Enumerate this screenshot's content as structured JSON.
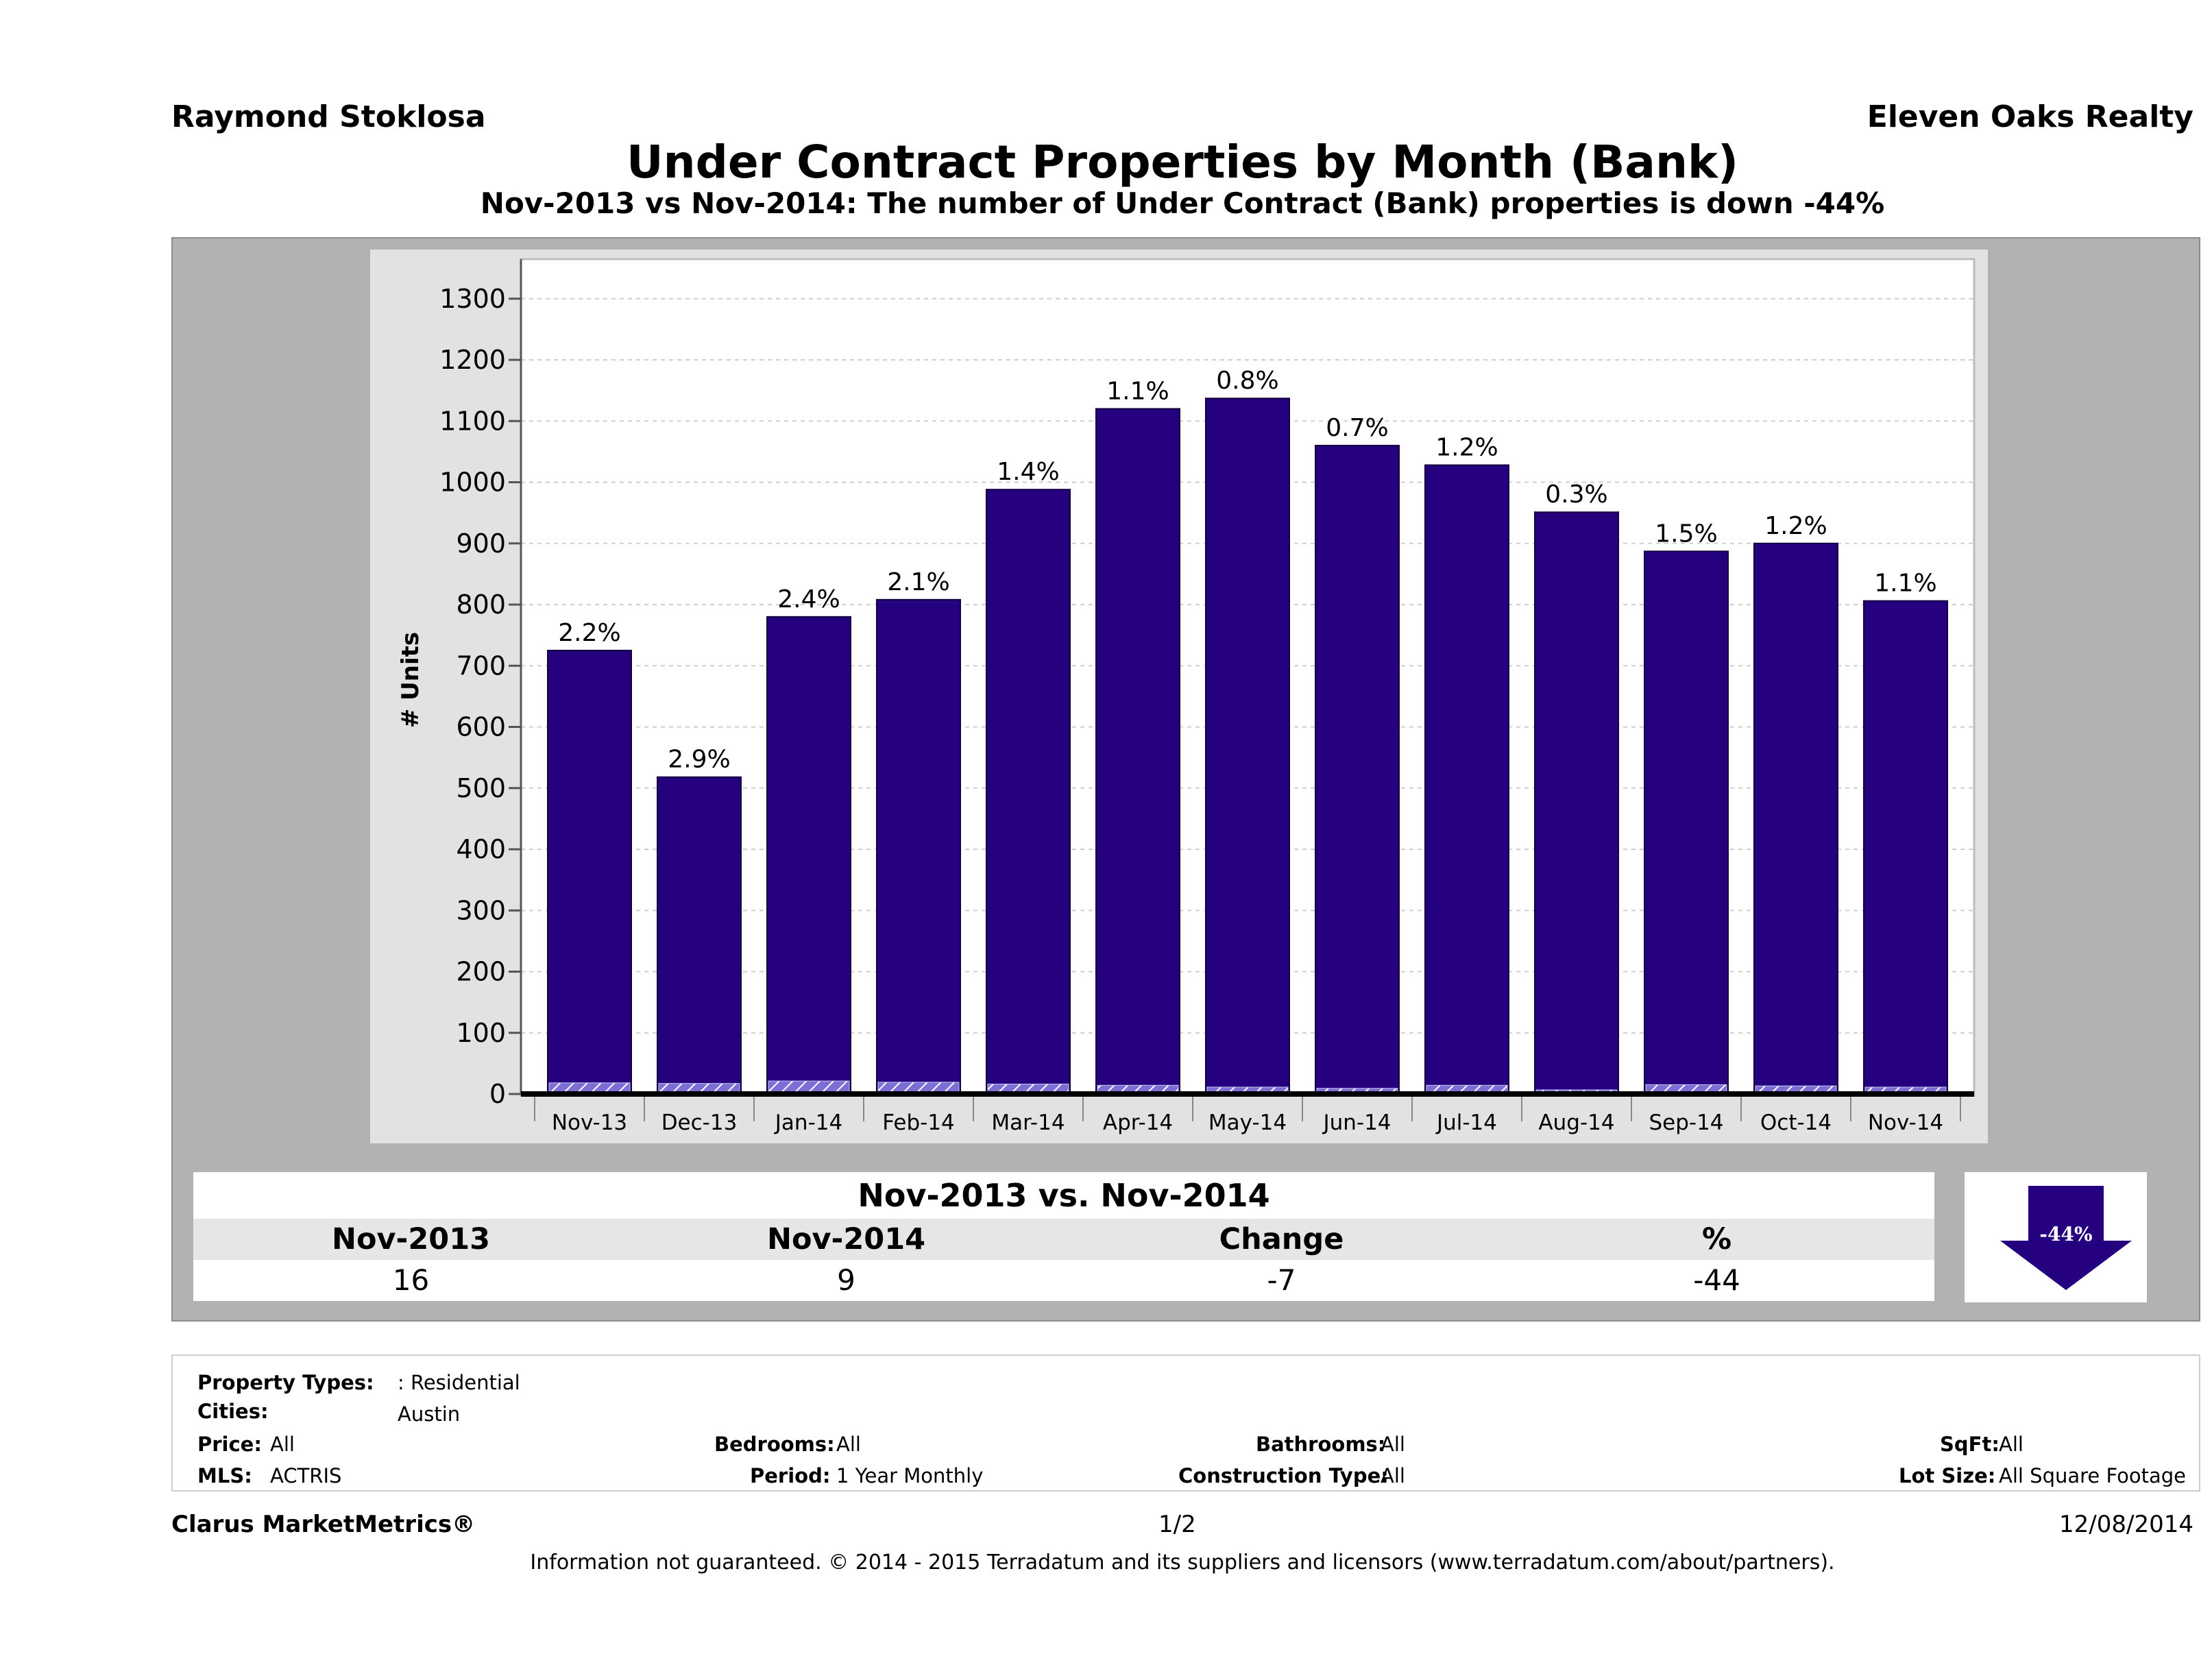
{
  "header": {
    "agent": "Raymond Stoklosa",
    "company": "Eleven Oaks Realty",
    "title": "Under Contract Properties by Month (Bank)",
    "subtitle": "Nov-2013 vs Nov-2014: The number of Under Contract (Bank)  properties is down -44%"
  },
  "chart_data": {
    "type": "bar",
    "ylabel": "# Units",
    "ylim": [
      0,
      1350
    ],
    "yticks": [
      "0",
      "100",
      "200",
      "300",
      "400",
      "500",
      "600",
      "700",
      "800",
      "900",
      "1000",
      "1100",
      "1200",
      "1300"
    ],
    "categories": [
      "Nov-13",
      "Dec-13",
      "Jan-14",
      "Feb-14",
      "Mar-14",
      "Apr-14",
      "May-14",
      "Jun-14",
      "Jul-14",
      "Aug-14",
      "Sep-14",
      "Oct-14",
      "Nov-14"
    ],
    "series": [
      {
        "values": [
          725,
          518,
          780,
          808,
          988,
          1120,
          1137,
          1060,
          1028,
          951,
          887,
          900,
          806
        ]
      },
      {
        "values": [
          16,
          15,
          19,
          17,
          14,
          12,
          9,
          7,
          12,
          3,
          13,
          11,
          9
        ]
      }
    ],
    "data_labels": [
      "2.2%",
      "2.9%",
      "2.4%",
      "2.1%",
      "1.4%",
      "1.1%",
      "0.8%",
      "0.7%",
      "1.2%",
      "0.3%",
      "1.5%",
      "1.2%",
      "1.1%"
    ],
    "grid": true,
    "colors": {
      "bar": "#25007f",
      "bank": "#7b6fd6",
      "frame": "#b2b2b2"
    }
  },
  "comparison": {
    "heading": "Nov-2013 vs. Nov-2014",
    "columns": [
      "Nov-2013",
      "Nov-2014",
      "Change",
      "%"
    ],
    "values": [
      "16",
      "9",
      "-7",
      "-44"
    ],
    "arrow_label": "-44%",
    "arrow_color": "#25007f"
  },
  "filters": {
    "property_types_label": "Property Types:",
    "property_types_value": ": Residential",
    "cities_label": "Cities:",
    "cities_value": "Austin",
    "price_label": "Price:",
    "price_value": "All",
    "mls_label": "MLS:",
    "mls_value": "ACTRIS",
    "bedrooms_label": "Bedrooms:",
    "bedrooms_value": "All",
    "period_label": "Period:",
    "period_value": "1 Year Monthly",
    "bathrooms_label": "Bathrooms:",
    "bathrooms_value": "All",
    "construction_label": "Construction Type:",
    "construction_value": "All",
    "sqft_label": "SqFt:",
    "sqft_value": "All",
    "lotsize_label": "Lot Size:",
    "lotsize_value": "All Square Footage"
  },
  "footer": {
    "brand": "Clarus MarketMetrics®",
    "page": "1/2",
    "date": "12/08/2014",
    "disclaimer": "Information not guaranteed. © 2014 - 2015 Terradatum and its suppliers and licensors (www.terradatum.com/about/partners)."
  }
}
